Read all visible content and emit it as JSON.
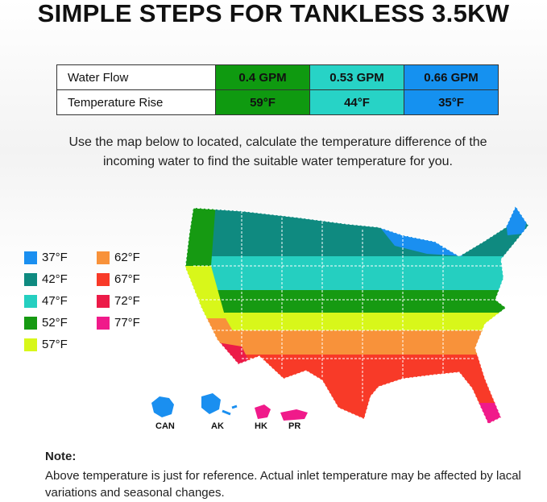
{
  "title": "SIMPLE STEPS FOR TANKLESS 3.5KW",
  "table": {
    "rows": [
      {
        "label": "Water Flow",
        "values": [
          "0.4 GPM",
          "0.53 GPM",
          "0.66 GPM"
        ]
      },
      {
        "label": "Temperature Rise",
        "values": [
          "59°F",
          "44°F",
          "35°F"
        ]
      }
    ],
    "column_colors": [
      "#0f9a10",
      "#27d3c6",
      "#1591f0"
    ]
  },
  "description": "Use the map below to located, calculate the temperature difference of the incoming water to find the suitable water temperature for you.",
  "legend": [
    {
      "label": "37°F",
      "color": "#1a8ff0"
    },
    {
      "label": "42°F",
      "color": "#0f8a80"
    },
    {
      "label": "47°F",
      "color": "#25cfc0"
    },
    {
      "label": "52°F",
      "color": "#169a12"
    },
    {
      "label": "57°F",
      "color": "#d8f71a"
    },
    {
      "label": "62°F",
      "color": "#f8923a"
    },
    {
      "label": "67°F",
      "color": "#f83a28"
    },
    {
      "label": "72°F",
      "color": "#ec1b48"
    },
    {
      "label": "77°F",
      "color": "#f01a8a"
    }
  ],
  "islands": [
    "CAN",
    "AK",
    "HK",
    "PR"
  ],
  "note": {
    "heading": "Note:",
    "text": "Above temperature is just for reference. Actual inlet temperature may be affected by lacal variations and seasonal changes."
  }
}
